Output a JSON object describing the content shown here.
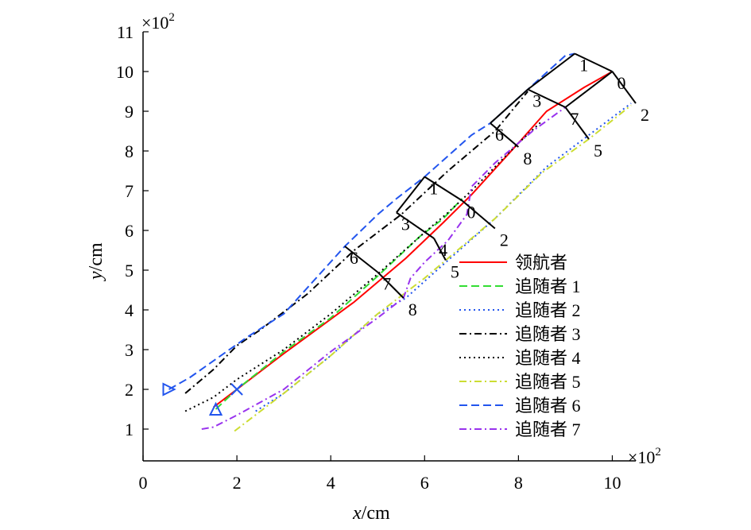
{
  "chart_data": {
    "type": "line",
    "title": "",
    "xlabel_italic": "x",
    "xlabel_unit": "/cm",
    "ylabel_italic": "y",
    "ylabel_unit": "/cm",
    "x_multiplier": "×10",
    "x_multiplier_exp": "2",
    "y_multiplier": "×10",
    "y_multiplier_exp": "2",
    "xlim": [
      0,
      10.5
    ],
    "ylim": [
      0.2,
      11
    ],
    "x_ticks": [
      0,
      2,
      4,
      6,
      8,
      10
    ],
    "y_ticks": [
      1,
      2,
      3,
      4,
      5,
      6,
      7,
      8,
      9,
      10,
      11
    ],
    "legend_position": "inside-right",
    "series": [
      {
        "name": "领航者",
        "color": "#ff0000",
        "dash": "solid",
        "points": [
          [
            1.5,
            1.55
          ],
          [
            3.0,
            2.9
          ],
          [
            4.5,
            4.2
          ],
          [
            5.6,
            5.3
          ],
          [
            6.4,
            6.2
          ],
          [
            7.0,
            6.9
          ],
          [
            8.0,
            8.2
          ],
          [
            8.6,
            9.0
          ],
          [
            9.4,
            9.6
          ],
          [
            10.0,
            10.0
          ]
        ]
      },
      {
        "name": "追随者 1",
        "color": "#33dd33",
        "dash": "long-dash",
        "points": [
          [
            1.55,
            1.5
          ],
          [
            2.0,
            2.0
          ],
          [
            3.0,
            2.95
          ],
          [
            4.0,
            3.8
          ],
          [
            5.0,
            4.85
          ],
          [
            5.9,
            5.85
          ],
          [
            6.4,
            6.3
          ],
          [
            6.8,
            6.8
          ]
        ]
      },
      {
        "name": "追随者 2",
        "color": "#2255ee",
        "dash": "dotted",
        "points": [
          [
            2.4,
            1.45
          ],
          [
            3.0,
            1.9
          ],
          [
            4.0,
            2.85
          ],
          [
            5.0,
            3.9
          ],
          [
            5.6,
            4.3
          ],
          [
            6.5,
            5.25
          ],
          [
            7.5,
            6.3
          ],
          [
            8.6,
            7.6
          ],
          [
            9.5,
            8.4
          ],
          [
            10.4,
            9.2
          ]
        ]
      },
      {
        "name": "追随者 3",
        "color": "#000000",
        "dash": "dash-dot",
        "points": [
          [
            0.9,
            1.9
          ],
          [
            1.5,
            2.5
          ],
          [
            2.0,
            3.1
          ],
          [
            2.5,
            3.5
          ],
          [
            3.5,
            4.4
          ],
          [
            4.5,
            5.5
          ],
          [
            5.5,
            6.4
          ],
          [
            6.5,
            7.5
          ],
          [
            7.5,
            8.5
          ],
          [
            8.2,
            9.5
          ]
        ]
      },
      {
        "name": "追随者 4",
        "color": "#000000",
        "dash": "dotted",
        "points": [
          [
            0.9,
            1.45
          ],
          [
            1.5,
            1.8
          ],
          [
            2.0,
            2.25
          ],
          [
            3.0,
            3.0
          ],
          [
            4.0,
            3.9
          ],
          [
            5.0,
            4.9
          ],
          [
            6.0,
            5.95
          ],
          [
            6.5,
            6.45
          ],
          [
            7.0,
            7.0
          ],
          [
            7.5,
            7.6
          ],
          [
            8.0,
            8.2
          ],
          [
            8.5,
            8.75
          ]
        ]
      },
      {
        "name": "追随者 5",
        "color": "#ccdd33",
        "dash": "dash-dot",
        "points": [
          [
            1.95,
            0.95
          ],
          [
            3.0,
            1.9
          ],
          [
            4.0,
            2.85
          ],
          [
            5.0,
            3.9
          ],
          [
            6.0,
            4.8
          ],
          [
            6.45,
            5.25
          ],
          [
            7.5,
            6.3
          ],
          [
            8.5,
            7.45
          ],
          [
            9.5,
            8.3
          ],
          [
            10.4,
            9.15
          ]
        ]
      },
      {
        "name": "追随者 6",
        "color": "#2255ee",
        "dash": "long-dash",
        "points": [
          [
            0.55,
            2.0
          ],
          [
            1.0,
            2.3
          ],
          [
            1.6,
            2.8
          ],
          [
            2.2,
            3.3
          ],
          [
            3.0,
            3.9
          ],
          [
            4.3,
            5.6
          ],
          [
            5.0,
            6.4
          ],
          [
            5.4,
            6.8
          ],
          [
            6.0,
            7.35
          ],
          [
            7.0,
            8.4
          ],
          [
            7.4,
            8.7
          ],
          [
            8.2,
            9.55
          ],
          [
            9.0,
            10.4
          ],
          [
            9.2,
            10.45
          ]
        ]
      },
      {
        "name": "追随者 7",
        "color": "#9933ee",
        "dash": "dash-dot",
        "points": [
          [
            1.25,
            1.0
          ],
          [
            1.5,
            1.05
          ],
          [
            2.0,
            1.35
          ],
          [
            3.0,
            2.0
          ],
          [
            4.0,
            2.95
          ],
          [
            5.0,
            3.8
          ],
          [
            5.55,
            4.3
          ],
          [
            5.7,
            4.8
          ],
          [
            6.0,
            5.2
          ],
          [
            6.5,
            5.75
          ],
          [
            6.9,
            6.4
          ],
          [
            7.0,
            7.1
          ],
          [
            7.5,
            7.7
          ],
          [
            8.3,
            8.5
          ],
          [
            9.0,
            9.1
          ]
        ]
      }
    ],
    "start_markers": [
      {
        "shape": "triangle-right",
        "x": 0.55,
        "y": 2.0,
        "color": "#2255ee"
      },
      {
        "shape": "triangle-up",
        "x": 1.55,
        "y": 1.5,
        "color": "#2255ee"
      },
      {
        "shape": "cross",
        "x": 2.0,
        "y": 2.0,
        "color": "#2255ee"
      }
    ],
    "formation_snapshots": [
      {
        "nodes": [
          {
            "label": "1",
            "x": 9.2,
            "y": 10.45
          },
          {
            "label": "0",
            "x": 10.0,
            "y": 10.0
          },
          {
            "label": "2",
            "x": 10.5,
            "y": 9.2
          },
          {
            "label": "3",
            "x": 8.2,
            "y": 9.55
          },
          {
            "label": "7",
            "x": 9.0,
            "y": 9.1
          },
          {
            "label": "5",
            "x": 9.5,
            "y": 8.3
          },
          {
            "label": "6",
            "x": 7.4,
            "y": 8.7
          },
          {
            "label": "8",
            "x": 8.0,
            "y": 8.1
          }
        ],
        "edges": [
          [
            "3",
            "1"
          ],
          [
            "1",
            "0"
          ],
          [
            "0",
            "2"
          ],
          [
            "3",
            "7"
          ],
          [
            "7",
            "5"
          ],
          [
            "0",
            "7"
          ],
          [
            "6",
            "8"
          ],
          [
            "3",
            "6"
          ]
        ]
      },
      {
        "nodes": [
          {
            "label": "1",
            "x": 6.0,
            "y": 7.35
          },
          {
            "label": "0",
            "x": 6.8,
            "y": 6.75
          },
          {
            "label": "2",
            "x": 7.5,
            "y": 6.05
          },
          {
            "label": "3",
            "x": 5.4,
            "y": 6.45
          },
          {
            "label": "4",
            "x": 6.2,
            "y": 5.8
          },
          {
            "label": "5",
            "x": 6.45,
            "y": 5.25
          },
          {
            "label": "6",
            "x": 4.3,
            "y": 5.6
          },
          {
            "label": "7",
            "x": 5.0,
            "y": 4.95
          },
          {
            "label": "8",
            "x": 5.55,
            "y": 4.3
          }
        ],
        "edges": [
          [
            "3",
            "1"
          ],
          [
            "1",
            "0"
          ],
          [
            "0",
            "2"
          ],
          [
            "3",
            "4"
          ],
          [
            "4",
            "5"
          ],
          [
            "6",
            "7"
          ],
          [
            "7",
            "8"
          ]
        ]
      }
    ]
  }
}
